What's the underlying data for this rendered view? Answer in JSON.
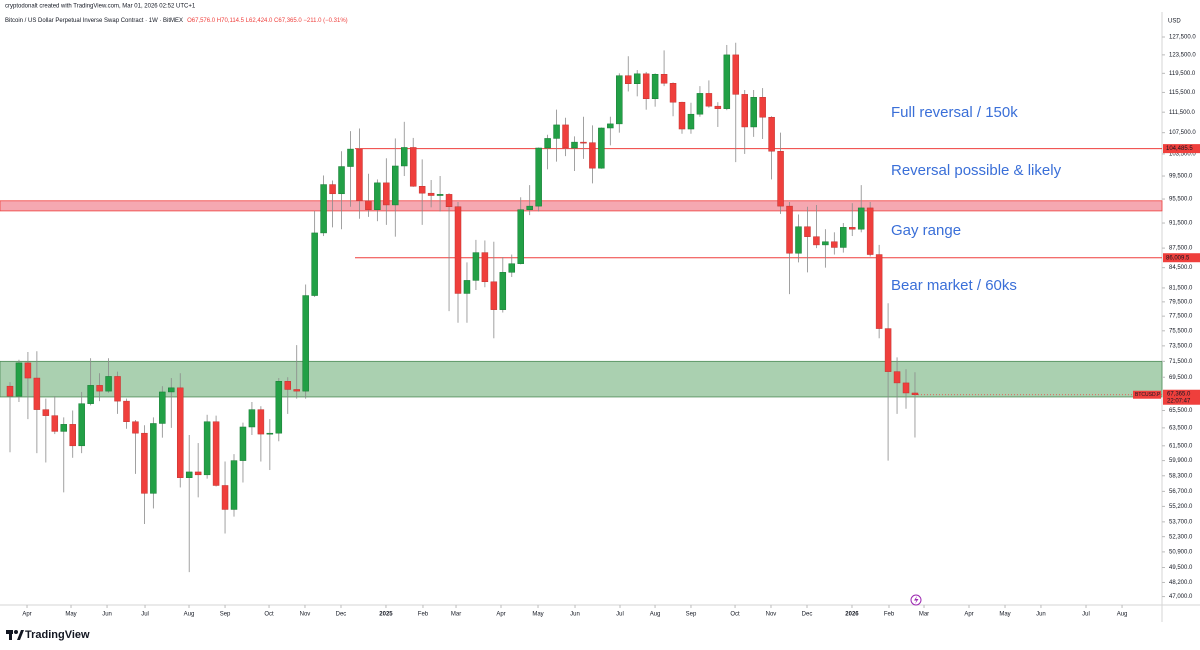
{
  "header": {
    "credit": "cryptodonalt created with TradingView.com, Mar 01, 2026 02:52 UTC+1",
    "brand": "TradingView"
  },
  "chart_data": {
    "type": "candlestick",
    "title": "Bitcoin / US Dollar Perpetual Inverse Swap Contract · 1W · BitMEX",
    "ohlc_text": "O67,576.0 H70,114.5 L62,424.0 C67,365.0 −211.0 (−0.31%)",
    "currency": "USD",
    "log_scale": true,
    "up_color": "#22a046",
    "down_color": "#ef3f3c",
    "wick_color": "#8a8a8a",
    "open": [
      68400,
      67200,
      71300,
      69400,
      65600,
      64900,
      63100,
      63900,
      61500,
      66300,
      68500,
      67800,
      69600,
      66600,
      64200,
      62900,
      56500,
      64000,
      67700,
      68200,
      58100,
      58700,
      58400,
      64200,
      57300,
      54900,
      59900,
      63600,
      65600,
      62800,
      62900,
      69000,
      68000,
      67800,
      80400,
      89900,
      98000,
      96400,
      101200,
      104400,
      95200,
      93700,
      98300,
      94500,
      101300,
      104700,
      97700,
      96500,
      96100,
      96300,
      94200,
      80700,
      82600,
      86800,
      82400,
      78400,
      83800,
      85100,
      93700,
      94300,
      104600,
      106400,
      109000,
      104600,
      105700,
      105600,
      100900,
      108400,
      109200,
      119000,
      117300,
      119400,
      114200,
      119300,
      117400,
      113500,
      108200,
      111100,
      115300,
      112700,
      112200,
      123500,
      115100,
      108600,
      114500,
      110500,
      104000,
      94300,
      86700,
      90900,
      89300,
      88000,
      88500,
      87600,
      90800,
      90500,
      94000,
      86500,
      75800,
      70200,
      68800,
      67576
    ],
    "high": [
      68900,
      71700,
      72700,
      72800,
      66900,
      67200,
      64700,
      65500,
      67700,
      71900,
      70000,
      71900,
      70200,
      66900,
      64400,
      63800,
      64700,
      68400,
      69400,
      70000,
      62700,
      61800,
      65000,
      64900,
      59800,
      60600,
      64100,
      66500,
      66000,
      64500,
      69400,
      69500,
      73600,
      82000,
      93500,
      99600,
      98700,
      104000,
      107800,
      108300,
      99900,
      98900,
      102700,
      106400,
      109600,
      106500,
      102500,
      98800,
      99500,
      96500,
      95000,
      85300,
      88800,
      88700,
      88500,
      86100,
      86500,
      95800,
      97900,
      104700,
      107100,
      112000,
      110400,
      106800,
      110600,
      108900,
      108500,
      110600,
      119500,
      123200,
      120200,
      119800,
      119500,
      124500,
      117600,
      113600,
      113400,
      116800,
      118000,
      113500,
      125700,
      126200,
      116000,
      116000,
      116400,
      110700,
      107500,
      95000,
      92900,
      94200,
      94500,
      90500,
      90000,
      91500,
      94800,
      97900,
      95000,
      88000,
      79300,
      72000,
      70500,
      70114.5
    ],
    "low": [
      60800,
      66500,
      64500,
      60700,
      59700,
      62800,
      56600,
      60200,
      60700,
      66100,
      66600,
      67600,
      65100,
      63400,
      58500,
      53500,
      55000,
      62400,
      63500,
      57100,
      49100,
      56100,
      58000,
      57200,
      52600,
      54200,
      57600,
      62700,
      59800,
      58900,
      62000,
      65100,
      66900,
      66900,
      80200,
      89400,
      90800,
      90500,
      94200,
      92200,
      92500,
      91800,
      91200,
      89300,
      99500,
      97600,
      91200,
      94100,
      93400,
      78200,
      76600,
      76600,
      81200,
      81600,
      74500,
      78000,
      83100,
      85000,
      92800,
      93400,
      100700,
      102100,
      103100,
      100400,
      102600,
      98200,
      100800,
      105100,
      107500,
      115700,
      114700,
      112000,
      112600,
      116800,
      110700,
      107300,
      107300,
      110600,
      112400,
      108600,
      111900,
      102000,
      103500,
      106700,
      106300,
      98900,
      93000,
      80600,
      85300,
      83800,
      87500,
      84500,
      86500,
      86800,
      89400,
      90000,
      86200,
      74500,
      59900,
      65100,
      65700,
      62424
    ],
    "close": [
      67200,
      71300,
      69400,
      65600,
      64900,
      63100,
      63900,
      61500,
      66300,
      68500,
      67800,
      69600,
      66600,
      64200,
      62900,
      56500,
      64000,
      67700,
      68200,
      58100,
      58700,
      58400,
      64200,
      57300,
      54900,
      59900,
      63600,
      65600,
      62800,
      62900,
      69000,
      68000,
      67800,
      80400,
      89900,
      98000,
      96400,
      101200,
      104400,
      95200,
      93700,
      98300,
      94500,
      101300,
      104700,
      97700,
      96500,
      96100,
      96300,
      94200,
      80700,
      82600,
      86800,
      82400,
      78400,
      83800,
      85100,
      93700,
      94300,
      104600,
      106400,
      109000,
      104600,
      105700,
      105600,
      100900,
      108400,
      109200,
      119000,
      117300,
      119400,
      114200,
      119300,
      117400,
      113500,
      108200,
      111100,
      115300,
      112700,
      112200,
      123500,
      115100,
      108600,
      114500,
      110500,
      104000,
      94300,
      86700,
      90900,
      89300,
      88000,
      88500,
      87600,
      90800,
      90500,
      94000,
      86500,
      75800,
      70200,
      68800,
      67576,
      67365
    ],
    "xlim": [
      -1.116,
      128.57
    ],
    "xticks": [
      {
        "value": 1.9,
        "label": "Apr"
      },
      {
        "value": 6.81,
        "label": "May"
      },
      {
        "value": 10.83,
        "label": "Jun"
      },
      {
        "value": 15.07,
        "label": "Jul"
      },
      {
        "value": 19.98,
        "label": "Aug"
      },
      {
        "value": 24.0,
        "label": "Sep"
      },
      {
        "value": 28.91,
        "label": "Oct"
      },
      {
        "value": 32.92,
        "label": "Nov"
      },
      {
        "value": 36.94,
        "label": "Dec"
      },
      {
        "value": 41.96,
        "label": "2025"
      },
      {
        "value": 46.09,
        "label": "Feb"
      },
      {
        "value": 49.78,
        "label": "Mar"
      },
      {
        "value": 54.8,
        "label": "Apr"
      },
      {
        "value": 58.93,
        "label": "May"
      },
      {
        "value": 63.06,
        "label": "Jun"
      },
      {
        "value": 68.08,
        "label": "Jul"
      },
      {
        "value": 71.99,
        "label": "Aug"
      },
      {
        "value": 76.0,
        "label": "Sep"
      },
      {
        "value": 80.92,
        "label": "Oct"
      },
      {
        "value": 84.93,
        "label": "Nov"
      },
      {
        "value": 88.95,
        "label": "Dec"
      },
      {
        "value": 93.97,
        "label": "2026"
      },
      {
        "value": 98.1,
        "label": "Feb"
      },
      {
        "value": 102.01,
        "label": "Mar"
      },
      {
        "value": 107.03,
        "label": "Apr"
      },
      {
        "value": 111.05,
        "label": "May"
      },
      {
        "value": 115.06,
        "label": "Jun"
      },
      {
        "value": 120.09,
        "label": "Jul"
      },
      {
        "value": 124.11,
        "label": "Aug"
      }
    ],
    "ylim": [
      46300,
      132600
    ],
    "yticks": [
      {
        "value": 127500,
        "label": "127,500.0"
      },
      {
        "value": 123500,
        "label": "123,500.0"
      },
      {
        "value": 119500,
        "label": "119,500.0"
      },
      {
        "value": 115500,
        "label": "115,500.0"
      },
      {
        "value": 111500,
        "label": "111,500.0"
      },
      {
        "value": 107500,
        "label": "107,500.0"
      },
      {
        "value": 103500,
        "label": "103,500.0"
      },
      {
        "value": 99500,
        "label": "99,500.0"
      },
      {
        "value": 95500,
        "label": "95,500.0"
      },
      {
        "value": 91500,
        "label": "91,500.0"
      },
      {
        "value": 87500,
        "label": "87,500.0"
      },
      {
        "value": 84500,
        "label": "84,500.0"
      },
      {
        "value": 81500,
        "label": "81,500.0"
      },
      {
        "value": 79500,
        "label": "79,500.0"
      },
      {
        "value": 77500,
        "label": "77,500.0"
      },
      {
        "value": 75500,
        "label": "75,500.0"
      },
      {
        "value": 73500,
        "label": "73,500.0"
      },
      {
        "value": 71500,
        "label": "71,500.0"
      },
      {
        "value": 69500,
        "label": "69,500.0"
      },
      {
        "value": 67500,
        "label": "67,500.0"
      },
      {
        "value": 65500,
        "label": "65,500.0"
      },
      {
        "value": 63500,
        "label": "63,500.0"
      },
      {
        "value": 61500,
        "label": "61,500.0"
      },
      {
        "value": 59900,
        "label": "59,900.0"
      },
      {
        "value": 58300,
        "label": "58,300.0"
      },
      {
        "value": 56700,
        "label": "56,700.0"
      },
      {
        "value": 55200,
        "label": "55,200.0"
      },
      {
        "value": 53700,
        "label": "53,700.0"
      },
      {
        "value": 52300,
        "label": "52,300.0"
      },
      {
        "value": 50900,
        "label": "50,900.0"
      },
      {
        "value": 49500,
        "label": "49,500.0"
      },
      {
        "value": 48200,
        "label": "48,200.0"
      },
      {
        "value": 47000,
        "label": "47,000.0"
      }
    ],
    "levels": [
      {
        "value": 104485.5,
        "label": "104,485.5",
        "color": "#ef3f3c"
      },
      {
        "value": 86009.5,
        "label": "86,009.5",
        "color": "#ef3f3c"
      }
    ],
    "zones": [
      {
        "from": 93500,
        "to": 95200,
        "color": "#f4a3ad",
        "stroke": "#ef3f3c"
      },
      {
        "from": 67100,
        "to": 71500,
        "color": "#a5ceac",
        "stroke": "#4c8a56"
      }
    ],
    "annotations": [
      "Full reversal / 150k",
      "Reversal possible & likely",
      "Gay range",
      "Bear market / 60ks"
    ],
    "last_price": {
      "symbol": "BTCUSD.P",
      "label": "67,365.0",
      "countdown": "22:07:47"
    }
  }
}
